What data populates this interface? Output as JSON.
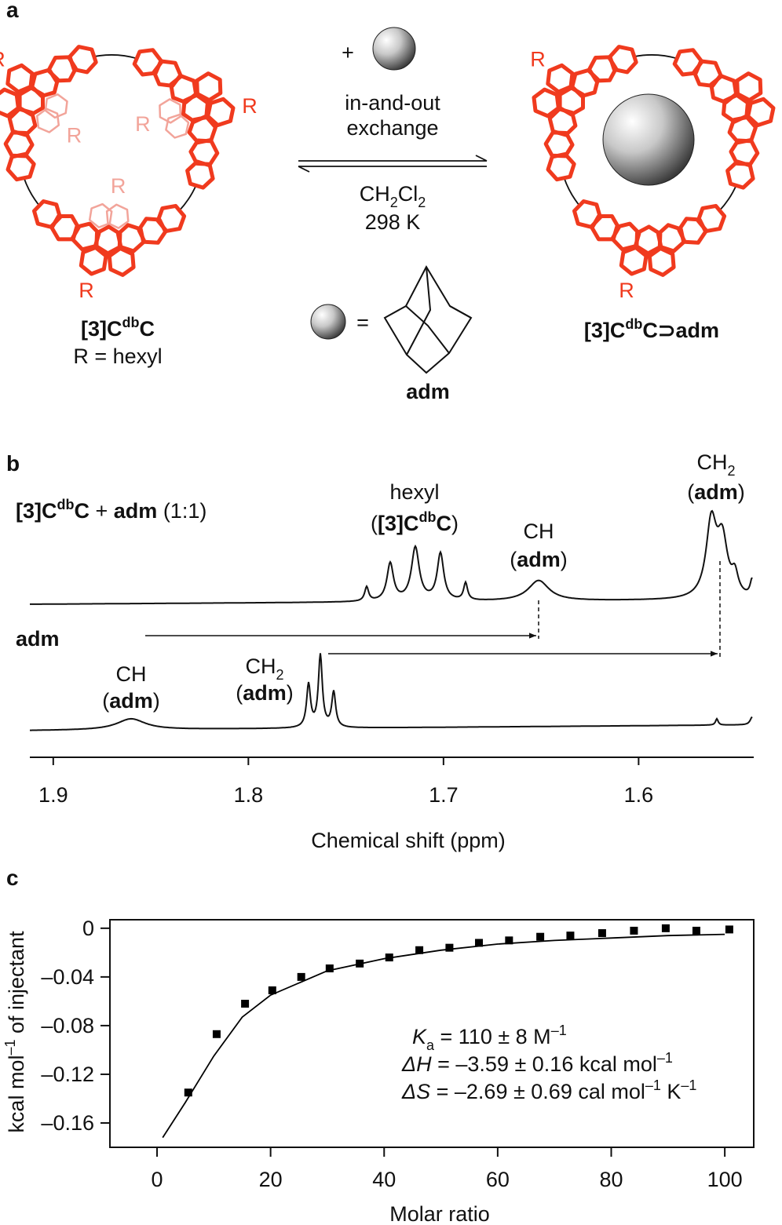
{
  "panel_a": {
    "label": "a",
    "plus": "+",
    "conditions": [
      "in-and-out",
      "exchange"
    ],
    "solvent": [
      "CH",
      "2",
      "Cl",
      "2"
    ],
    "temperature": "298 K",
    "equals": "=",
    "guest": "adm",
    "substituent": "R",
    "host": {
      "name": [
        "[3]C",
        "db",
        "C"
      ],
      "note": "R = hexyl"
    },
    "complex": {
      "name": [
        "[3]C",
        "db",
        "C⊃adm"
      ]
    }
  },
  "panel_b": {
    "label": "b",
    "mixture": [
      "[3]C",
      "db",
      "C",
      " + ",
      "adm",
      " (1:1)"
    ],
    "guest_trace": "adm",
    "hexyl": [
      "hexyl",
      "(",
      "[3]C",
      "db",
      "C",
      ")"
    ],
    "ch_label": [
      "CH",
      "(",
      "adm",
      ")"
    ],
    "ch2_label": [
      "CH",
      "2",
      "(",
      "adm",
      ")"
    ]
  },
  "panel_c": {
    "label": "c",
    "parameters": [
      [
        "K",
        "a",
        " = 110 ± 8 M",
        "–1"
      ],
      [
        "ΔH",
        " = –3.59 ± 0.16 kcal mol",
        "–1"
      ],
      [
        "ΔS",
        " = –2.69 ± 0.69 cal mol",
        "–1",
        " K",
        "–1"
      ]
    ]
  },
  "chart_data": [
    {
      "type": "spectrum",
      "xlabel": "Chemical shift (ppm)",
      "xlim": [
        1.912,
        1.541
      ],
      "xticks": [
        1.9,
        1.8,
        1.7,
        1.6
      ]
    },
    {
      "type": "scatter",
      "xlabel": "Molar ratio",
      "ylabel": [
        "kcal mol",
        "–1",
        " of injectant"
      ],
      "xlim": [
        -8.3,
        105.1
      ],
      "ylim": [
        -0.18,
        0.007
      ],
      "xticks": [
        0,
        20,
        40,
        60,
        80,
        100
      ],
      "yticks": [
        0,
        {
          "value": -0.04,
          "label": "–0.04"
        },
        {
          "value": -0.08,
          "label": "–0.08"
        },
        {
          "value": -0.12,
          "label": "–0.12"
        },
        {
          "value": -0.16,
          "label": "–0.16"
        }
      ],
      "series": [
        {
          "kind": "markers",
          "color": "#000000",
          "x": [
            5.5,
            10.5,
            15.5,
            20.3,
            25.4,
            30.4,
            35.7,
            40.9,
            46.2,
            51.5,
            56.7,
            62,
            67.5,
            72.8,
            78.4,
            84,
            89.6,
            95,
            100.8
          ],
          "values": [
            -0.135,
            -0.087,
            -0.062,
            -0.051,
            -0.04,
            -0.033,
            -0.029,
            -0.024,
            -0.018,
            -0.016,
            -0.012,
            -0.01,
            -0.007,
            -0.006,
            -0.004,
            -0.002,
            0,
            -0.002,
            -0.001
          ]
        },
        {
          "kind": "line",
          "color": "#000000",
          "x": [
            1,
            5,
            10,
            15,
            20,
            30,
            40,
            50,
            60,
            70,
            80,
            90,
            100
          ],
          "values": [
            -0.172,
            -0.143,
            -0.105,
            -0.073,
            -0.055,
            -0.035,
            -0.025,
            -0.018,
            -0.013,
            -0.01,
            -0.008,
            -0.006,
            -0.005
          ]
        }
      ]
    }
  ]
}
